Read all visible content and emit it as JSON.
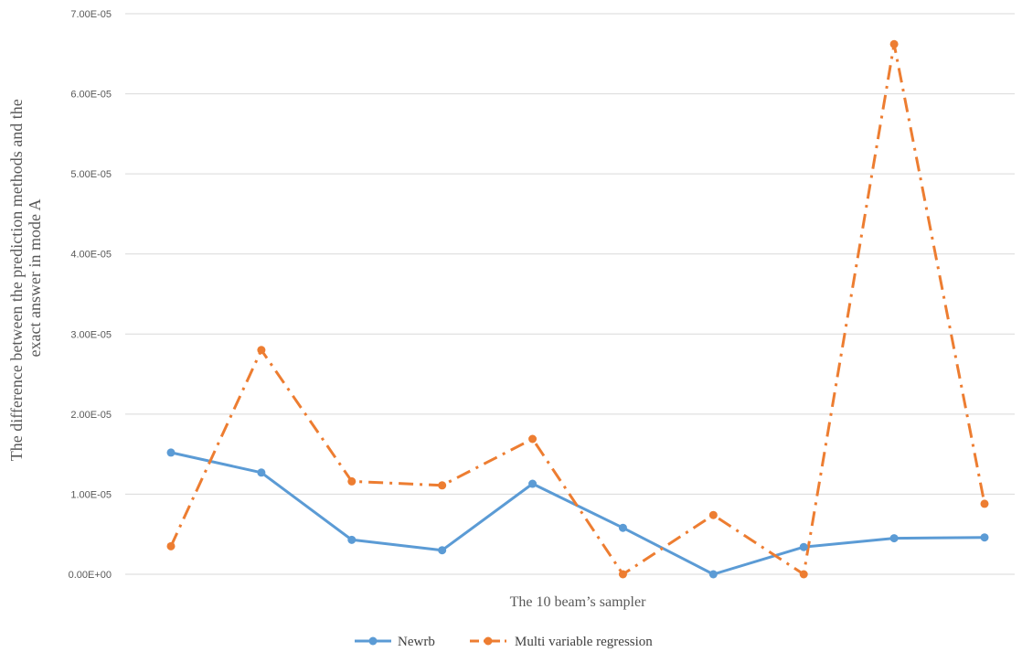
{
  "chart_data": {
    "type": "line",
    "title": "",
    "xlabel": "The 10 beam’s sampler",
    "ylabel_line1": "The difference between the prediction methods and the",
    "ylabel_line2": "exact answer in mode A",
    "ylim": [
      0,
      7e-05
    ],
    "y_ticks": [
      {
        "value": 0,
        "label": "0.00E+00"
      },
      {
        "value": 1e-05,
        "label": "1.00E-05"
      },
      {
        "value": 2e-05,
        "label": "2.00E-05"
      },
      {
        "value": 3e-05,
        "label": "3.00E-05"
      },
      {
        "value": 4e-05,
        "label": "4.00E-05"
      },
      {
        "value": 5e-05,
        "label": "5.00E-05"
      },
      {
        "value": 6e-05,
        "label": "6.00E-05"
      },
      {
        "value": 7e-05,
        "label": "7.00E-05"
      }
    ],
    "x": [
      1,
      2,
      3,
      4,
      5,
      6,
      7,
      8,
      9,
      10
    ],
    "grid": "horizontal",
    "legend_position": "bottom",
    "series": [
      {
        "name": "Newrb",
        "color": "#5B9BD5",
        "line_style": "solid",
        "values": [
          1.52e-05,
          1.27e-05,
          4.3e-06,
          3e-06,
          1.13e-05,
          5.8e-06,
          0.0,
          3.4e-06,
          4.5e-06,
          4.6e-06
        ]
      },
      {
        "name": "Multi variable regression",
        "color": "#ED7D31",
        "line_style": "dash-dot",
        "values": [
          3.5e-06,
          2.8e-05,
          1.16e-05,
          1.11e-05,
          1.69e-05,
          0.0,
          7.4e-06,
          0.0,
          6.62e-05,
          8.8e-06
        ]
      }
    ]
  }
}
